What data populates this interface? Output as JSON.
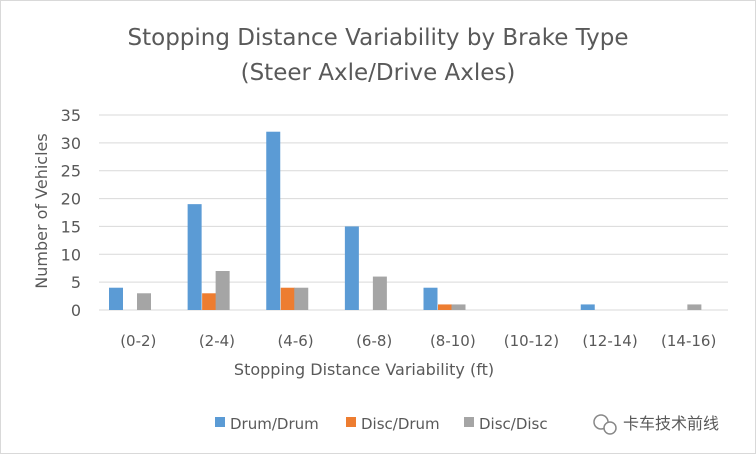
{
  "chart_data": {
    "type": "bar",
    "title": "Stopping Distance Variability by Brake Type",
    "subtitle": "(Steer Axle/Drive Axles)",
    "xlabel": "Stopping Distance Variability (ft)",
    "ylabel": "Number of Vehicles",
    "ylim": [
      0,
      35
    ],
    "yticks": [
      0,
      5,
      10,
      15,
      20,
      25,
      30,
      35
    ],
    "grid": true,
    "legend_placement": "bottom",
    "categories": [
      "(0-2)",
      "(2-4)",
      "(4-6)",
      "(6-8)",
      "(8-10)",
      "(10-12)",
      "(12-14)",
      "(14-16)"
    ],
    "series": [
      {
        "name": "Drum/Drum",
        "color": "#5b9bd5",
        "values": [
          4,
          19,
          32,
          15,
          4,
          0,
          1,
          0
        ]
      },
      {
        "name": "Disc/Drum",
        "color": "#ed7d31",
        "values": [
          0,
          3,
          4,
          0,
          1,
          0,
          0,
          0
        ]
      },
      {
        "name": "Disc/Disc",
        "color": "#a5a5a5",
        "values": [
          3,
          7,
          4,
          6,
          1,
          0,
          0,
          1
        ]
      }
    ]
  },
  "watermark": {
    "text": "卡车技术前线",
    "icon": "wechat-icon"
  }
}
